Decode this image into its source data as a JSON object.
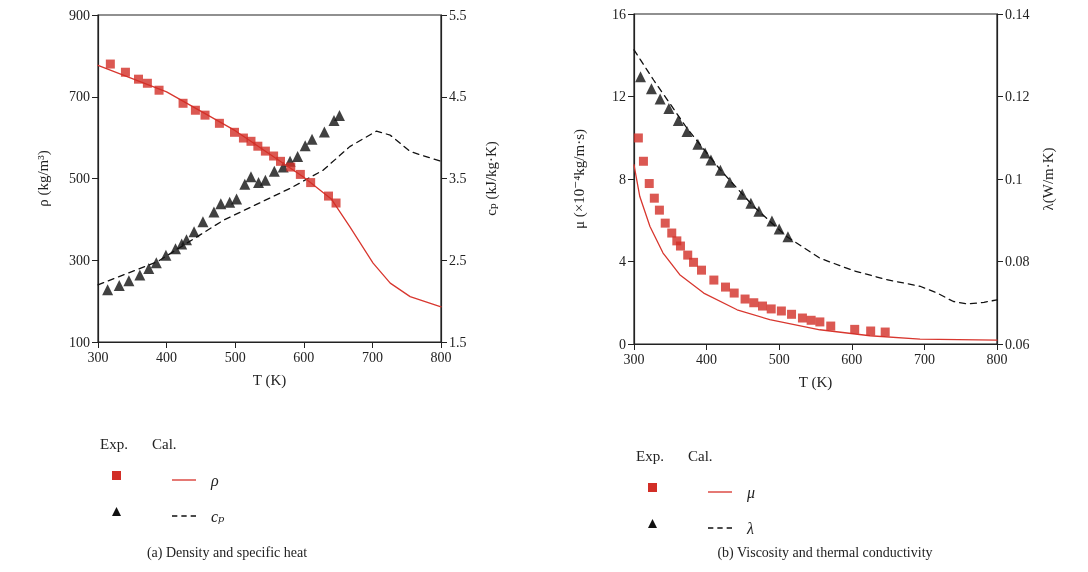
{
  "chart_data": [
    {
      "type": "line",
      "title": "(a) Density and specific heat",
      "xlabel": "T (K)",
      "ylabel": "ρ (kg/m³)",
      "y2label": "cₚ (kJ/kg·K)",
      "annotations": [
        "Exp.",
        "Cal."
      ],
      "xlim": [
        300,
        800
      ],
      "xticks": [
        300,
        400,
        500,
        600,
        700,
        800
      ],
      "ylim": [
        100,
        900
      ],
      "yticks": [
        100,
        300,
        500,
        700,
        900
      ],
      "y2lim": [
        1.5,
        5.5
      ],
      "y2ticks": [
        1.5,
        2.5,
        3.5,
        4.5,
        5.5
      ],
      "grid": false,
      "legend": "bottom",
      "series": [
        {
          "type": "scatter",
          "marker": "square",
          "color": "#d22e27",
          "x": [
            318,
            340,
            359,
            372,
            389,
            424,
            442,
            456,
            477,
            499,
            512,
            523,
            533,
            544,
            556,
            566,
            581,
            595,
            610,
            636,
            647
          ],
          "values": [
            780,
            760,
            743,
            733,
            716,
            684,
            667,
            655,
            635,
            613,
            599,
            591,
            579,
            567,
            555,
            542,
            528,
            510,
            490,
            457,
            440
          ]
        },
        {
          "name": "ρ",
          "type": "line",
          "marker": "none",
          "line_style": "solid",
          "color": "#d8372f",
          "x": [
            300,
            400,
            500,
            600,
            640,
            667,
            701,
            726,
            755,
            800
          ],
          "values": [
            777,
            712,
            617,
            503,
            450,
            382,
            293,
            244,
            211,
            186
          ]
        },
        {
          "type": "scatter",
          "marker": "triangle",
          "axis": "y2",
          "color": "#111111",
          "x": [
            314,
            331,
            345,
            361,
            374,
            385,
            399,
            413,
            422,
            429,
            440,
            453,
            469,
            479,
            492,
            502,
            514,
            523,
            534,
            544,
            557,
            570,
            580,
            591,
            602,
            612,
            630,
            644,
            652
          ],
          "values": [
            2.14,
            2.19,
            2.25,
            2.32,
            2.4,
            2.47,
            2.56,
            2.64,
            2.7,
            2.75,
            2.85,
            2.97,
            3.09,
            3.19,
            3.21,
            3.25,
            3.43,
            3.52,
            3.45,
            3.48,
            3.59,
            3.64,
            3.71,
            3.77,
            3.9,
            3.98,
            4.07,
            4.21,
            4.27
          ]
        },
        {
          "name": "cₚ",
          "type": "line",
          "marker": "none",
          "line_style": "dashed",
          "axis": "y2",
          "color": "#111111",
          "x": [
            300,
            386,
            483,
            580,
            628,
            667,
            706,
            726,
            755,
            800
          ],
          "values": [
            2.2,
            2.48,
            2.99,
            3.38,
            3.6,
            3.89,
            4.08,
            4.03,
            3.83,
            3.71
          ]
        }
      ]
    },
    {
      "type": "line",
      "title": "(b) Viscosity and thermal conductivity",
      "xlabel": "T (K)",
      "ylabel": "μ (×10⁻⁴kg/m·s)",
      "y2label": "λ(W/m·K)",
      "annotations": [
        "Exp.",
        "Cal."
      ],
      "xlim": [
        300,
        800
      ],
      "xticks": [
        300,
        400,
        500,
        600,
        700,
        800
      ],
      "ylim": [
        0,
        16
      ],
      "yticks": [
        0,
        4,
        8,
        12,
        16
      ],
      "y2lim": [
        0.06,
        0.14
      ],
      "y2ticks": [
        0.06,
        0.08,
        0.1,
        0.12,
        0.14
      ],
      "grid": false,
      "legend": "bottom",
      "series": [
        {
          "type": "scatter",
          "marker": "square",
          "color": "#d22e27",
          "x": [
            306,
            313,
            321,
            328,
            335,
            343,
            352,
            359,
            364,
            374,
            382,
            393,
            410,
            426,
            438,
            453,
            465,
            477,
            489,
            503,
            517,
            532,
            544,
            556,
            571,
            604,
            626,
            646
          ],
          "values": [
            9.99,
            8.86,
            7.78,
            7.07,
            6.49,
            5.86,
            5.38,
            5.0,
            4.75,
            4.31,
            3.96,
            3.58,
            3.1,
            2.76,
            2.47,
            2.18,
            2.0,
            1.84,
            1.7,
            1.6,
            1.44,
            1.26,
            1.15,
            1.07,
            0.87,
            0.71,
            0.63,
            0.58
          ]
        },
        {
          "name": "μ",
          "type": "line",
          "marker": "none",
          "line_style": "solid",
          "color": "#d8372f",
          "x": [
            300,
            308,
            322,
            340,
            363,
            396,
            442,
            487,
            556,
            625,
            694,
            800
          ],
          "values": [
            8.69,
            7.15,
            5.7,
            4.41,
            3.36,
            2.47,
            1.66,
            1.18,
            0.69,
            0.4,
            0.24,
            0.19
          ]
        },
        {
          "type": "scatter",
          "marker": "triangle",
          "axis": "y2",
          "color": "#111111",
          "x": [
            309,
            324,
            336,
            348,
            361,
            373,
            388,
            398,
            406,
            419,
            432,
            449,
            461,
            472,
            490,
            500,
            512
          ],
          "values": [
            0.1248,
            0.1219,
            0.1194,
            0.1171,
            0.1142,
            0.1115,
            0.1084,
            0.1063,
            0.1046,
            0.1021,
            0.0992,
            0.0963,
            0.0941,
            0.0922,
            0.0898,
            0.0879,
            0.086
          ]
        },
        {
          "name": "λ",
          "type": "line",
          "marker": "none",
          "line_style": "dashed",
          "axis": "y2",
          "color": "#111111",
          "x": [
            300,
            327,
            373,
            419,
            465,
            510,
            556,
            602,
            648,
            694,
            717,
            740,
            759,
            782,
            800
          ],
          "values": [
            0.1313,
            0.124,
            0.1123,
            0.1022,
            0.0933,
            0.0861,
            0.0808,
            0.0778,
            0.0756,
            0.074,
            0.0724,
            0.0703,
            0.0697,
            0.0701,
            0.0707
          ]
        }
      ]
    }
  ]
}
